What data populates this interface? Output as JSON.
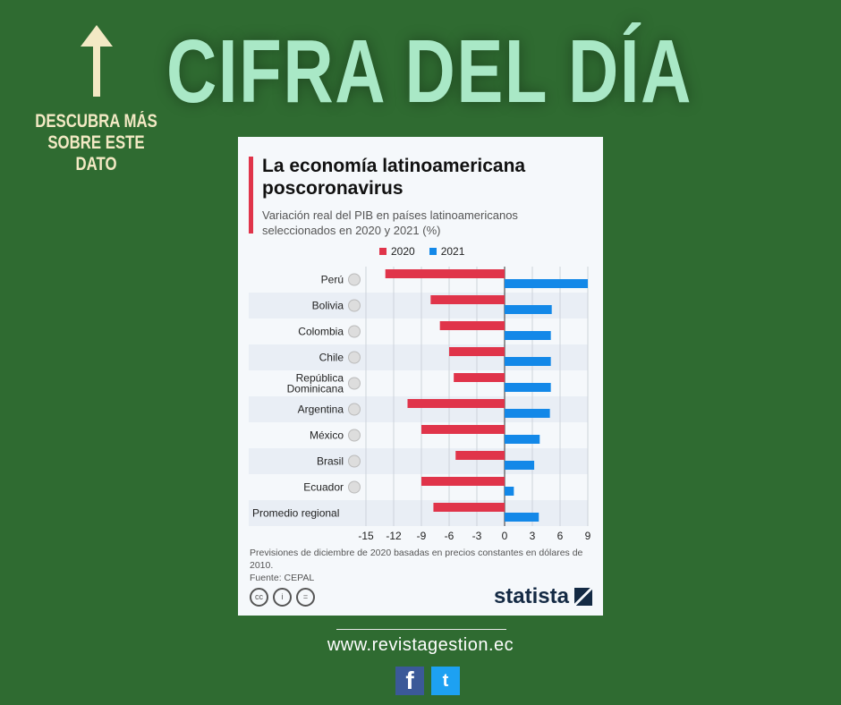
{
  "banner": {
    "headline": "CIFRA DEL DÍA",
    "side_text": "DESCUBRA MÁS SOBRE ESTE DATO",
    "website": "www.revistagestion.ec",
    "social": [
      "facebook-icon",
      "twitter-icon"
    ]
  },
  "card": {
    "title": "La economía latinoamericana poscoronavirus",
    "subtitle": "Variación real del PIB en países latinoamericanos seleccionados en 2020 y 2021 (%)",
    "note": "Previsiones de diciembre de 2020 basadas en precios constantes en dólares de 2010.",
    "source": "Fuente: CEPAL",
    "cc": [
      "cc",
      "i",
      "="
    ],
    "brand": "statista"
  },
  "chart_data": {
    "type": "bar",
    "orientation": "horizontal",
    "title": "La economía latinoamericana poscoronavirus",
    "categories": [
      "Perú",
      "Bolivia",
      "Colombia",
      "Chile",
      "República Dominicana",
      "Argentina",
      "México",
      "Brasil",
      "Ecuador",
      "Promedio regional"
    ],
    "series": [
      {
        "name": "2020",
        "color": "#e0344a",
        "values": [
          -12.9,
          -8.0,
          -7.0,
          -6.0,
          -5.5,
          -10.5,
          -9.0,
          -5.3,
          -9.0,
          -7.7
        ]
      },
      {
        "name": "2021",
        "color": "#1388e8",
        "values": [
          9.0,
          5.1,
          5.0,
          5.0,
          5.0,
          4.9,
          3.8,
          3.2,
          1.0,
          3.7
        ]
      }
    ],
    "xlim": [
      -15,
      9
    ],
    "xticks": [
      "-15",
      "-12",
      "-9",
      "-6",
      "-3",
      "0",
      "3",
      "6",
      "9"
    ],
    "grid": true,
    "legend": "top"
  }
}
